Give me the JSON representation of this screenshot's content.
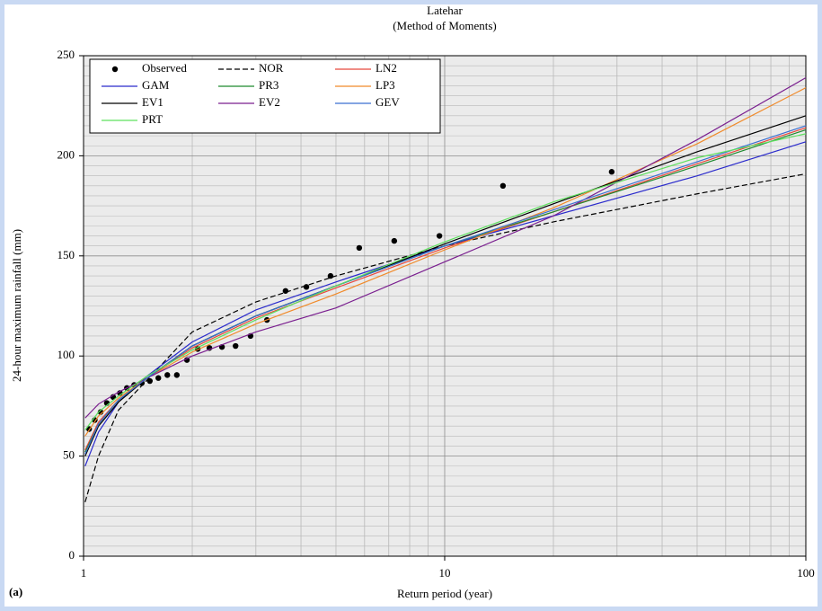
{
  "chart_data": {
    "type": "line",
    "title": "Latehar",
    "subtitle": "(Method of Moments)",
    "x_label": "Return period (year)",
    "y_label": "24-hour maximum rainfall (mm)",
    "annotation": "(a)",
    "x_log": true,
    "grid": true,
    "xlim": [
      1,
      100
    ],
    "xticks": [
      1,
      10,
      100
    ],
    "ylim": [
      0,
      250
    ],
    "yticks": [
      0,
      50,
      100,
      150,
      200,
      250
    ],
    "legend": "upper left",
    "series": [
      {
        "name": "Observed",
        "color": "#000000",
        "mode": "markers",
        "x": [
          1.036,
          1.074,
          1.115,
          1.16,
          1.208,
          1.261,
          1.318,
          1.381,
          1.45,
          1.526,
          1.611,
          1.706,
          1.8125,
          1.933,
          2.071,
          2.231,
          2.417,
          2.636,
          2.9,
          3.22,
          3.625,
          4.14,
          4.83,
          5.8,
          7.25,
          9.67,
          14.5,
          29
        ],
        "values": [
          63.5,
          68,
          72,
          76.5,
          79.5,
          81.5,
          84,
          85.5,
          86.5,
          87.5,
          89,
          90.5,
          90.5,
          98,
          103.5,
          104,
          104.5,
          105,
          110,
          118,
          132.5,
          134.5,
          140,
          154,
          157.5,
          160,
          185,
          192
        ]
      },
      {
        "name": "NOR",
        "color": "#000000",
        "dash": true,
        "x": [
          1.01,
          1.1,
          1.25,
          1.5,
          2,
          3,
          5,
          10,
          20,
          50,
          100
        ],
        "values": [
          27,
          50,
          73,
          88,
          112,
          127,
          140,
          155,
          167,
          181,
          191
        ]
      },
      {
        "name": "LN2",
        "color": "#e8473c",
        "x": [
          1.01,
          1.1,
          1.25,
          1.5,
          2,
          3,
          5,
          10,
          20,
          50,
          100
        ],
        "values": [
          53,
          67,
          78,
          89,
          104,
          119,
          134,
          154,
          172,
          196,
          214
        ]
      },
      {
        "name": "GAM",
        "color": "#2b2bcc",
        "x": [
          1.01,
          1.1,
          1.25,
          1.5,
          2,
          3,
          5,
          10,
          20,
          50,
          100
        ],
        "values": [
          45,
          62,
          77,
          90,
          107,
          123,
          137,
          155,
          170,
          190,
          207
        ]
      },
      {
        "name": "PR3",
        "color": "#1f8a2f",
        "x": [
          1.01,
          1.1,
          1.25,
          1.5,
          2,
          3,
          5,
          10,
          20,
          50,
          100
        ],
        "values": [
          52,
          66,
          78,
          89,
          105,
          120,
          135,
          155,
          172,
          195,
          213
        ]
      },
      {
        "name": "LP3",
        "color": "#f08a2a",
        "x": [
          1.01,
          1.1,
          1.25,
          1.5,
          2,
          3,
          5,
          10,
          20,
          50,
          100
        ],
        "values": [
          60,
          70,
          79,
          89,
          102,
          116,
          131,
          153,
          174,
          206,
          234
        ]
      },
      {
        "name": "EV1",
        "color": "#000000",
        "x": [
          1.01,
          1.1,
          1.25,
          1.5,
          2,
          3,
          5,
          10,
          20,
          50,
          100
        ],
        "values": [
          50,
          65,
          77,
          89,
          105,
          120,
          135,
          156,
          176,
          202,
          220
        ]
      },
      {
        "name": "EV2",
        "color": "#7a1f8f",
        "x": [
          1.01,
          1.1,
          1.25,
          1.5,
          2,
          3,
          5,
          10,
          20,
          50,
          100
        ],
        "values": [
          69,
          76,
          82,
          89,
          100,
          112,
          124,
          147,
          170,
          208,
          239
        ]
      },
      {
        "name": "GEV",
        "color": "#3a6fd0",
        "x": [
          1.01,
          1.1,
          1.25,
          1.5,
          2,
          3,
          5,
          10,
          20,
          50,
          100
        ],
        "values": [
          51,
          66,
          78,
          89,
          105,
          120,
          135,
          155,
          173,
          197,
          215
        ]
      },
      {
        "name": "PRT",
        "color": "#5ee05e",
        "x": [
          1.01,
          1.1,
          1.25,
          1.5,
          2,
          3,
          5,
          10,
          20,
          50,
          100
        ],
        "values": [
          63,
          72,
          80,
          90,
          103,
          118,
          135,
          157,
          177,
          199,
          211
        ]
      }
    ]
  }
}
